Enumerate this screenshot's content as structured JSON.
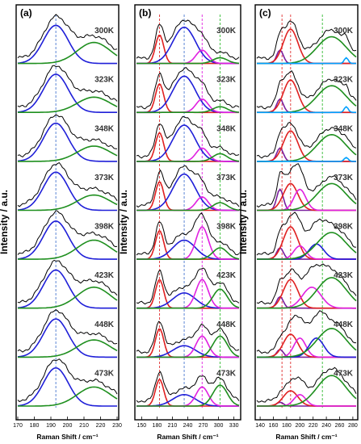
{
  "figure": {
    "y_axis_label_a": "Intensity / a.u.",
    "y_axis_label_b": "Intensity / a.u.",
    "y_axis_label_c": "Intensity / a.u."
  },
  "colors": {
    "measured": "#000000",
    "blue_fit": "#1f1fd8",
    "green_fit": "#1e8f1e",
    "red_fit": "#e02020",
    "magenta_fit": "#e020e0",
    "purple_fit": "#7a1f9e",
    "cyan_fit": "#00a0ff",
    "guide_blue": "#4a78d0",
    "guide_red": "#e03030",
    "guide_green": "#33bb33"
  },
  "chart_data": [
    {
      "type": "line",
      "panel": "(a)",
      "xlabel": "Raman Shift / cm⁻¹",
      "ylabel": "Intensity / a.u.",
      "xlim": [
        170,
        230
      ],
      "xticks": [
        170,
        180,
        190,
        200,
        210,
        220,
        230
      ],
      "guides": [
        {
          "x": 193,
          "color": "blue"
        }
      ],
      "temperatures": [
        "300K",
        "323K",
        "348K",
        "373K",
        "398K",
        "423K",
        "448K",
        "473K"
      ],
      "components": [
        {
          "color": "blue",
          "center": 193,
          "width": 7.5,
          "amps": [
            1.0,
            1.0,
            1.0,
            1.0,
            1.0,
            1.0,
            1.0,
            1.0
          ]
        },
        {
          "color": "green",
          "center": 216,
          "width": 10,
          "amps": [
            0.55,
            0.4,
            0.4,
            0.4,
            0.5,
            0.55,
            0.45,
            0.5
          ]
        }
      ]
    },
    {
      "type": "line",
      "panel": "(b)",
      "xlabel": "Raman Shift / cm⁻¹",
      "ylabel": "Intensity / a.u.",
      "xlim": [
        140,
        340
      ],
      "xticks": [
        150,
        180,
        210,
        240,
        270,
        300,
        330
      ],
      "guides": [
        {
          "x": 185,
          "color": "red"
        },
        {
          "x": 233,
          "color": "blue"
        },
        {
          "x": 268,
          "color": "magenta"
        },
        {
          "x": 303,
          "color": "green"
        }
      ],
      "temperatures": [
        "300K",
        "323K",
        "348K",
        "373K",
        "398K",
        "423K",
        "448K",
        "473K"
      ],
      "components": [
        {
          "color": "red",
          "center": 185,
          "width": 8,
          "amps": [
            0.75,
            0.75,
            0.75,
            0.75,
            0.75,
            0.75,
            0.75,
            0.7
          ]
        },
        {
          "color": "blue",
          "center": 233,
          "width": 22,
          "amps": [
            0.95,
            0.95,
            0.95,
            0.95,
            0.5,
            0.4,
            0.3,
            0.3
          ]
        },
        {
          "color": "magenta",
          "center": 268,
          "width": 12,
          "amps": [
            0.35,
            0.35,
            0.35,
            0.35,
            0.85,
            0.75,
            0.55,
            0.5
          ]
        },
        {
          "color": "green",
          "center": 303,
          "width": 14,
          "amps": [
            0.15,
            0.15,
            0.2,
            0.2,
            0.3,
            0.5,
            0.55,
            0.55
          ]
        }
      ]
    },
    {
      "type": "line",
      "panel": "(c)",
      "xlabel": "Raman Shift / cm⁻¹",
      "ylabel": "Intensity / a.u.",
      "xlim": [
        135,
        285
      ],
      "xticks": [
        140,
        160,
        180,
        200,
        220,
        240,
        260,
        280
      ],
      "guides": [
        {
          "x": 173,
          "color": "red"
        },
        {
          "x": 186,
          "color": "red"
        },
        {
          "x": 234,
          "color": "green"
        }
      ],
      "temperatures": [
        "300K",
        "323K",
        "348K",
        "373K",
        "398K",
        "423K",
        "448K",
        "473K"
      ],
      "components": [
        {
          "color": "purple",
          "center": 170,
          "width": 5,
          "amps": [
            0.35,
            0.35,
            0.35,
            0.55,
            0.3,
            0.3,
            0.2,
            0.1
          ]
        },
        {
          "color": "red",
          "center": 186,
          "width": 11,
          "amps": [
            0.9,
            0.85,
            0.8,
            0.7,
            0.85,
            0.75,
            0.6,
            0.4
          ]
        },
        {
          "color": "magenta",
          "center": 200,
          "width": 9,
          "amps": [
            0.0,
            0.0,
            0.0,
            0.55,
            0.35,
            0.0,
            0.5,
            0.3
          ]
        },
        {
          "color": "blue",
          "center": 225,
          "width": 11,
          "amps": [
            0.0,
            0.0,
            0.0,
            0.0,
            0.4,
            0.0,
            0.5,
            0.0
          ]
        },
        {
          "color": "magenta",
          "center": 218,
          "width": 14,
          "amps": [
            0.0,
            0.0,
            0.0,
            0.0,
            0.0,
            0.55,
            0.0,
            0.0
          ]
        },
        {
          "color": "green",
          "center": 248,
          "width": 22,
          "amps": [
            0.7,
            0.7,
            0.7,
            0.7,
            0.7,
            0.8,
            0.75,
            0.8
          ]
        },
        {
          "color": "cyan",
          "center": 270,
          "width": 3,
          "amps": [
            0.15,
            0.15,
            0.1,
            0.0,
            0.0,
            0.0,
            0.0,
            0.0
          ]
        }
      ]
    }
  ]
}
